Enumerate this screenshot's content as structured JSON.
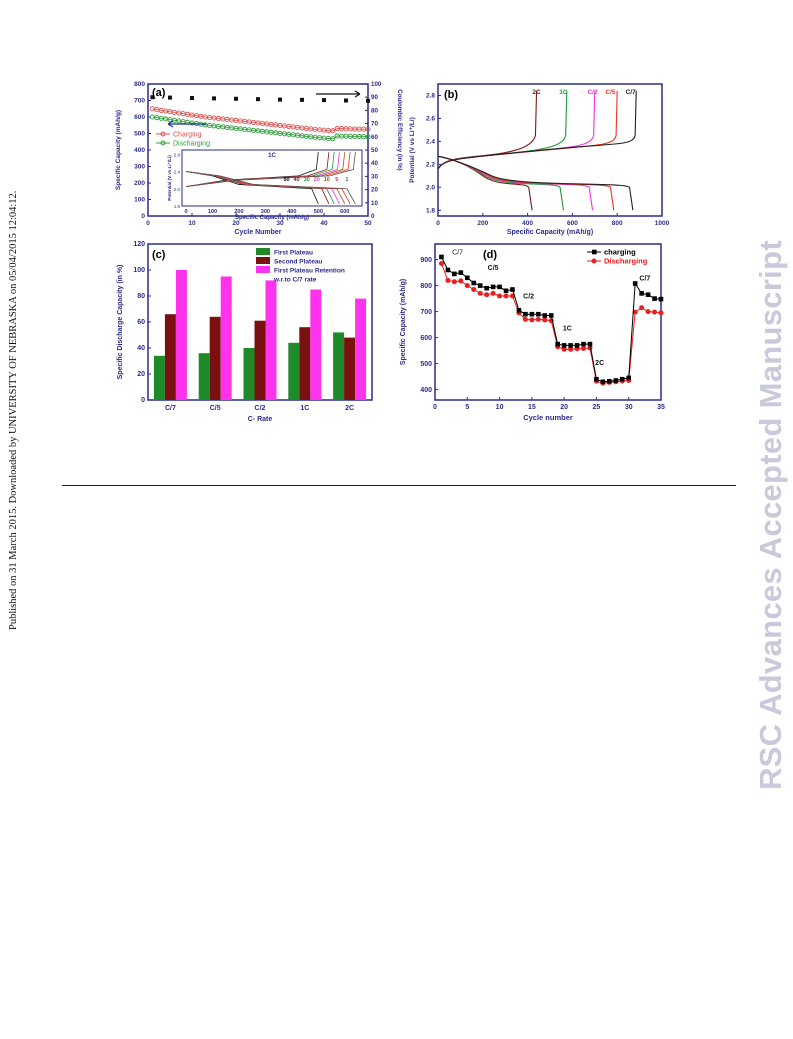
{
  "side_note": "Published on 31 March 2015. Downloaded by UNIVERSITY OF NEBRASKA on 05/04/2015 12:04:12.",
  "watermark": "RSC Advances Accepted Manuscript",
  "colors": {
    "charging_a": "#e05050",
    "discharging_a": "#2e9c38",
    "efficiency": "#111111",
    "bar_first": "#1f8a2a",
    "bar_second": "#7a1010",
    "bar_retention": "#ff33ee",
    "rate_charging": "#000000",
    "rate_discharging": "#ee1c1c",
    "curve_2C": "#7a1a10",
    "curve_1C": "#1f9a3a",
    "curve_C2": "#ee33dd",
    "curve_C5": "#ee3322",
    "curve_C7": "#222222"
  },
  "chart_data": [
    {
      "panel": "(a)",
      "type": "scatter",
      "xlabel": "Cycle Number",
      "ylabel": "Specific Capacity (mAh/g)",
      "y2label": "Coulombic Efficiency (in %)",
      "xlim": [
        0,
        50
      ],
      "ylim": [
        0,
        800
      ],
      "y2lim": [
        0,
        100
      ],
      "xticks": [
        0,
        10,
        20,
        30,
        40,
        50
      ],
      "yticks": [
        0,
        100,
        200,
        300,
        400,
        500,
        600,
        700,
        800
      ],
      "y2ticks": [
        0,
        10,
        20,
        30,
        40,
        50,
        60,
        70,
        80,
        90,
        100
      ],
      "legend": [
        "Charging",
        "Discharging"
      ],
      "series": [
        {
          "name": "Charging",
          "x": [
            1,
            2,
            3,
            4,
            5,
            6,
            7,
            8,
            9,
            10,
            11,
            12,
            13,
            14,
            15,
            16,
            17,
            18,
            19,
            20,
            21,
            22,
            23,
            24,
            25,
            26,
            27,
            28,
            29,
            30,
            31,
            32,
            33,
            34,
            35,
            36,
            37,
            38,
            39,
            40,
            41,
            42,
            43,
            44,
            45,
            46,
            47,
            48,
            49,
            50
          ],
          "y": [
            650,
            645,
            640,
            636,
            632,
            628,
            624,
            620,
            616,
            612,
            608,
            604,
            600,
            597,
            594,
            591,
            588,
            585,
            582,
            579,
            576,
            573,
            570,
            567,
            564,
            561,
            558,
            555,
            552,
            549,
            546,
            543,
            540,
            537,
            534,
            531,
            528,
            525,
            522,
            520,
            518,
            516,
            530,
            530,
            529,
            528,
            527,
            526,
            526,
            525
          ]
        },
        {
          "name": "Discharging",
          "x": [
            1,
            2,
            3,
            4,
            5,
            6,
            7,
            8,
            9,
            10,
            11,
            12,
            13,
            14,
            15,
            16,
            17,
            18,
            19,
            20,
            21,
            22,
            23,
            24,
            25,
            26,
            27,
            28,
            29,
            30,
            31,
            32,
            33,
            34,
            35,
            36,
            37,
            38,
            39,
            40,
            41,
            42,
            43,
            44,
            45,
            46,
            47,
            48,
            49,
            50
          ],
          "y": [
            600,
            596,
            592,
            588,
            584,
            580,
            576,
            572,
            568,
            564,
            560,
            556,
            552,
            549,
            546,
            543,
            540,
            537,
            534,
            531,
            528,
            525,
            522,
            519,
            516,
            513,
            510,
            507,
            504,
            501,
            498,
            495,
            492,
            489,
            486,
            483,
            480,
            477,
            474,
            472,
            470,
            468,
            485,
            484,
            484,
            483,
            482,
            482,
            481,
            480
          ]
        },
        {
          "name": "Coulombic Efficiency",
          "axis": "right",
          "x": [
            1,
            5,
            10,
            15,
            20,
            25,
            30,
            35,
            40,
            45,
            50
          ],
          "y": [
            90,
            89.7,
            89.4,
            89.1,
            88.8,
            88.5,
            88.2,
            88,
            87.8,
            87.5,
            87.3
          ]
        }
      ],
      "inset": {
        "label": "1C",
        "xlabel": "Specific Capacity (mAh/g)",
        "ylabel": "Potential (V vs Li⁺/Li)",
        "xticks": [
          0,
          100,
          200,
          300,
          400,
          500,
          600
        ],
        "yticks": [
          1.6,
          2.0,
          2.4,
          2.8
        ],
        "curve_labels": [
          "50",
          "40",
          "30",
          "20",
          "10",
          "5",
          "1"
        ]
      }
    },
    {
      "panel": "(b)",
      "type": "line",
      "xlabel": "Specific Capacity (mAh/g)",
      "ylabel": "Potential (V vs Li⁺/Li)",
      "xlim": [
        0,
        1000
      ],
      "ylim": [
        1.75,
        2.9
      ],
      "xticks": [
        0,
        200,
        400,
        600,
        800,
        1000
      ],
      "yticks": [
        1.8,
        2.0,
        2.2,
        2.4,
        2.6,
        2.8
      ],
      "curve_labels": [
        "2C",
        "1C",
        "C/2",
        "C/5",
        "C/7"
      ],
      "series": [
        {
          "name": "2C",
          "charge_end": 440,
          "discharge_end": 420
        },
        {
          "name": "1C",
          "charge_end": 575,
          "discharge_end": 560
        },
        {
          "name": "C/2",
          "charge_end": 700,
          "discharge_end": 690
        },
        {
          "name": "C/5",
          "charge_end": 800,
          "discharge_end": 785
        },
        {
          "name": "C/7",
          "charge_end": 885,
          "discharge_end": 870
        }
      ]
    },
    {
      "panel": "(c)",
      "type": "bar",
      "xlabel": "C- Rate",
      "ylabel": "Specific Discharge Capacity (in %)",
      "ylim": [
        0,
        120
      ],
      "yticks": [
        0,
        20,
        40,
        60,
        80,
        100,
        120
      ],
      "categories": [
        "C/7",
        "C/5",
        "C/2",
        "1C",
        "2C"
      ],
      "series": [
        {
          "name": "First Plateau",
          "values": [
            34,
            36,
            40,
            44,
            52
          ]
        },
        {
          "name": "Second Plateau",
          "values": [
            66,
            64,
            61,
            56,
            48
          ]
        },
        {
          "name": "First Plateau Retention w.r.to C/7 rate",
          "values": [
            100,
            95,
            92,
            85,
            78
          ]
        }
      ],
      "legend": [
        "First Plateau",
        "Second Plateau",
        "First Plateau Retention",
        "w.r.to C/7 rate"
      ]
    },
    {
      "panel": "(d)",
      "type": "line",
      "xlabel": "Cycle number",
      "ylabel": "Specific Capacity (mAh/g)",
      "xlim": [
        0,
        35
      ],
      "ylim": [
        360,
        960
      ],
      "xticks": [
        0,
        5,
        10,
        15,
        20,
        25,
        30,
        35
      ],
      "yticks": [
        400,
        500,
        600,
        700,
        800,
        900
      ],
      "rate_labels": [
        "C/7",
        "C/5",
        "C/2",
        "1C",
        "2C",
        "C/7"
      ],
      "legend": [
        "charging",
        "Discharging"
      ],
      "series": [
        {
          "name": "charging",
          "x": [
            1,
            2,
            3,
            4,
            5,
            6,
            7,
            8,
            9,
            10,
            11,
            12,
            13,
            14,
            15,
            16,
            17,
            18,
            19,
            20,
            21,
            22,
            23,
            24,
            25,
            26,
            27,
            28,
            29,
            30,
            31,
            32,
            33,
            34,
            35
          ],
          "y": [
            910,
            860,
            845,
            850,
            830,
            810,
            800,
            790,
            795,
            795,
            780,
            785,
            705,
            690,
            690,
            690,
            685,
            685,
            575,
            570,
            570,
            570,
            575,
            575,
            440,
            430,
            432,
            435,
            440,
            445,
            808,
            770,
            765,
            750,
            748
          ]
        },
        {
          "name": "Discharging",
          "x": [
            1,
            2,
            3,
            4,
            5,
            6,
            7,
            8,
            9,
            10,
            11,
            12,
            13,
            14,
            15,
            16,
            17,
            18,
            19,
            20,
            21,
            22,
            23,
            24,
            25,
            26,
            27,
            28,
            29,
            30,
            31,
            32,
            33,
            34,
            35
          ],
          "y": [
            885,
            820,
            815,
            818,
            800,
            785,
            770,
            765,
            770,
            760,
            760,
            760,
            695,
            670,
            668,
            670,
            668,
            665,
            565,
            555,
            555,
            557,
            558,
            560,
            432,
            425,
            428,
            430,
            433,
            435,
            698,
            715,
            700,
            698,
            695
          ]
        }
      ]
    }
  ]
}
